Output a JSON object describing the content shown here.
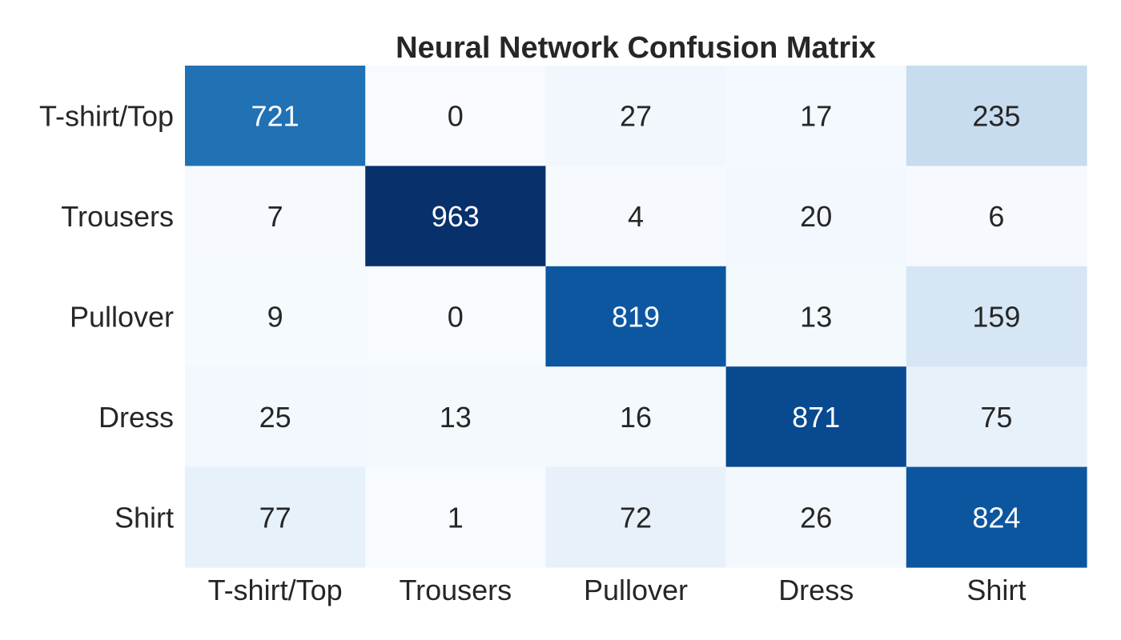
{
  "chart_data": {
    "type": "heatmap",
    "title": "Neural Network Confusion Matrix",
    "xlabel": "",
    "ylabel": "",
    "x_categories": [
      "T-shirt/Top",
      "Trousers",
      "Pullover",
      "Dress",
      "Shirt"
    ],
    "y_categories": [
      "T-shirt/Top",
      "Trousers",
      "Pullover",
      "Dress",
      "Shirt"
    ],
    "values": [
      [
        721,
        0,
        27,
        17,
        235
      ],
      [
        7,
        963,
        4,
        20,
        6
      ],
      [
        9,
        0,
        819,
        13,
        159
      ],
      [
        25,
        13,
        16,
        871,
        75
      ],
      [
        77,
        1,
        72,
        26,
        824
      ]
    ],
    "colormap": "Blues",
    "color_range": [
      0,
      963
    ],
    "colorbar": false,
    "annotations": true,
    "grid": false
  }
}
